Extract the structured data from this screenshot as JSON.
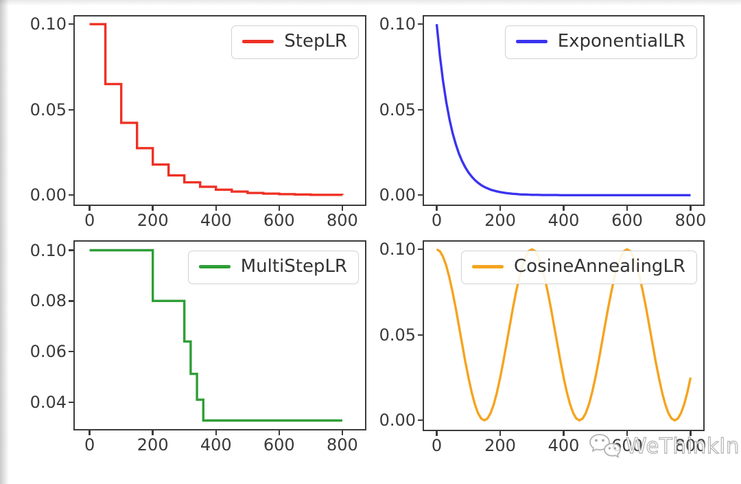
{
  "figure": {
    "background": "#ffffff"
  },
  "watermark": {
    "text": "WeThinkIn",
    "icon": "wechat-icon",
    "color": "#f2f2f2"
  },
  "colors": {
    "axes_frame": "#3b3b3b",
    "tick_text": "#3a3a3a",
    "legend_border": "#d2d2d2",
    "legend_text": "#333333"
  },
  "chart_data": {
    "type": "line",
    "layout": "2x2 grid of learning-rate schedule curves",
    "grid": false,
    "plots": [
      {
        "id": "steplr",
        "type": "step",
        "legend": "StepLR",
        "legend_position": "upper right",
        "color": "#ee3124",
        "x": [
          0,
          50,
          100,
          150,
          200,
          250,
          300,
          350,
          400,
          450,
          500,
          550,
          600,
          650,
          700,
          750,
          800
        ],
        "y": [
          0.1,
          0.065,
          0.0423,
          0.0275,
          0.0179,
          0.0116,
          0.0075,
          0.0049,
          0.0032,
          0.0021,
          0.0013,
          0.0009,
          0.0006,
          0.0004,
          0.0002,
          0.0002,
          0.0001
        ],
        "xlim": [
          -47,
          872
        ],
        "ylim": [
          -0.0055,
          0.1045
        ],
        "xticks": {
          "values": [
            0,
            200,
            400,
            600,
            800
          ],
          "labels": [
            "0",
            "200",
            "400",
            "600",
            "800"
          ]
        },
        "yticks": {
          "values": [
            0.1,
            0.05,
            0.0
          ],
          "labels": [
            "0.10",
            "0.05",
            "0.00"
          ]
        }
      },
      {
        "id": "exponentiallr",
        "type": "line",
        "legend": "ExponentialLR",
        "legend_position": "upper right",
        "color": "#3a34ee",
        "x_start": 0,
        "x_step": 10,
        "y": [
          0.1,
          0.0817,
          0.0668,
          0.0545,
          0.0446,
          0.0364,
          0.0298,
          0.0243,
          0.0199,
          0.0163,
          0.0133,
          0.0109,
          0.0089,
          0.0073,
          0.0059,
          0.0048,
          0.004,
          0.0032,
          0.0027,
          0.0022,
          0.0018,
          0.0015,
          0.0012,
          0.001,
          0.0008,
          0.0007,
          0.0005,
          0.0004,
          0.0004,
          0.0003,
          0.0002,
          0.0002,
          0.0002,
          0.0001,
          0.0001,
          0.0001,
          0.0001,
          0.0001,
          0.0001,
          0.0,
          0.0,
          0.0,
          0.0,
          0.0,
          0.0,
          0.0,
          0.0,
          0.0,
          0.0,
          0.0,
          0.0,
          0.0,
          0.0,
          0.0,
          0.0,
          0.0,
          0.0,
          0.0,
          0.0,
          0.0,
          0.0,
          0.0,
          0.0,
          0.0,
          0.0,
          0.0,
          0.0,
          0.0,
          0.0,
          0.0,
          0.0,
          0.0,
          0.0,
          0.0,
          0.0,
          0.0,
          0.0,
          0.0,
          0.0,
          0.0,
          0.0
        ],
        "xlim": [
          -40,
          840
        ],
        "ylim": [
          -0.0055,
          0.1045
        ],
        "xticks": {
          "values": [
            0,
            200,
            400,
            600,
            800
          ],
          "labels": [
            "0",
            "200",
            "400",
            "600",
            "800"
          ]
        },
        "yticks": {
          "values": [
            0.1,
            0.05,
            0.0
          ],
          "labels": [
            "0.10",
            "0.05",
            "0.00"
          ]
        }
      },
      {
        "id": "multisteplr",
        "type": "step",
        "legend": "MultiStepLR",
        "legend_position": "upper right",
        "color": "#2f9e38",
        "x": [
          0,
          200,
          300,
          320,
          340,
          360,
          800
        ],
        "y": [
          0.1,
          0.08,
          0.064,
          0.0512,
          0.041,
          0.0328,
          0.0328
        ],
        "xlim": [
          -47,
          872
        ],
        "ylim": [
          0.0294,
          0.1034
        ],
        "xticks": {
          "values": [
            0,
            200,
            400,
            600,
            800
          ],
          "labels": [
            "0",
            "200",
            "400",
            "600",
            "800"
          ]
        },
        "yticks": {
          "values": [
            0.1,
            0.08,
            0.06,
            0.04
          ],
          "labels": [
            "0.10",
            "0.08",
            "0.06",
            "0.04"
          ]
        }
      },
      {
        "id": "cosineannealinglr",
        "type": "line",
        "legend": "CosineAnnealingLR",
        "legend_position": "upper right",
        "color": "#f5a41f",
        "x_start": 0,
        "x_step": 10,
        "y": [
          0.1,
          0.0989,
          0.0957,
          0.0905,
          0.0835,
          0.075,
          0.0655,
          0.0552,
          0.0448,
          0.0345,
          0.025,
          0.0165,
          0.0095,
          0.0043,
          0.0011,
          0.0,
          0.0011,
          0.0043,
          0.0095,
          0.0165,
          0.025,
          0.0345,
          0.0448,
          0.0552,
          0.0655,
          0.075,
          0.0835,
          0.0905,
          0.0957,
          0.0989,
          0.1,
          0.0989,
          0.0957,
          0.0905,
          0.0835,
          0.075,
          0.0655,
          0.0552,
          0.0448,
          0.0345,
          0.025,
          0.0165,
          0.0095,
          0.0043,
          0.0011,
          0.0,
          0.0011,
          0.0043,
          0.0095,
          0.0165,
          0.025,
          0.0345,
          0.0448,
          0.0552,
          0.0655,
          0.075,
          0.0835,
          0.0905,
          0.0957,
          0.0989,
          0.1,
          0.0989,
          0.0957,
          0.0905,
          0.0835,
          0.075,
          0.0655,
          0.0552,
          0.0448,
          0.0345,
          0.025,
          0.0165,
          0.0095,
          0.0043,
          0.0011,
          0.0,
          0.0011,
          0.0043,
          0.0095,
          0.0165,
          0.025
        ],
        "xlim": [
          -40,
          840
        ],
        "ylim": [
          -0.0055,
          0.1045
        ],
        "xticks": {
          "values": [
            0,
            200,
            400,
            600,
            800
          ],
          "labels": [
            "0",
            "200",
            "400",
            "600",
            "800"
          ]
        },
        "yticks": {
          "values": [
            0.1,
            0.05,
            0.0
          ],
          "labels": [
            "0.10",
            "0.05",
            "0.00"
          ]
        }
      }
    ]
  }
}
